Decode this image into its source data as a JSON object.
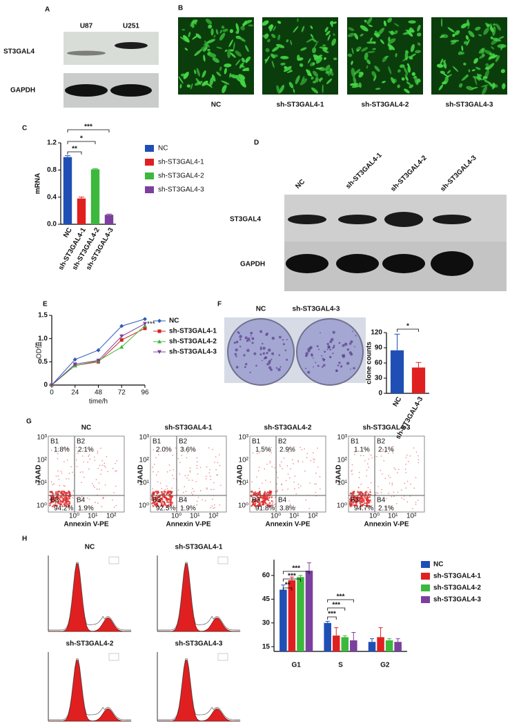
{
  "panels": {
    "A": {
      "label": "A",
      "columns": [
        "U87",
        "U251"
      ],
      "rows": [
        "ST3GAL4",
        "GAPDH"
      ]
    },
    "B": {
      "label": "B",
      "captions": [
        "NC",
        "sh-ST3GAL4-1",
        "sh-ST3GAL4-2",
        "sh-ST3GAL4-3"
      ]
    },
    "C": {
      "label": "C"
    },
    "D": {
      "label": "D",
      "columns": [
        "NC",
        "sh-ST3GAL4-1",
        "sh-ST3GAL4-2",
        "sh-ST3GAL4-3"
      ],
      "rows": [
        "ST3GAL4",
        "GAPDH"
      ]
    },
    "E": {
      "label": "E"
    },
    "F": {
      "label": "F",
      "image_labels": [
        "NC",
        "sh-ST3GAL4-3"
      ]
    },
    "G": {
      "label": "G",
      "y_axis_label": "7AAD",
      "x_axis_label": "Annexin V-PE",
      "y_ticks": [
        "10³",
        "10²",
        "10¹",
        "10⁰"
      ],
      "x_ticks": [
        "10⁰",
        "10¹",
        "10²"
      ],
      "plots": [
        {
          "title": "NC",
          "quadrants": [
            {
              "name": "B1",
              "value": "1.8%"
            },
            {
              "name": "B2",
              "value": "2.1%"
            },
            {
              "name": "B3",
              "value": "94.2%"
            },
            {
              "name": "B4",
              "value": "1.9%"
            }
          ]
        },
        {
          "title": "sh-ST3GAL4-1",
          "quadrants": [
            {
              "name": "B1",
              "value": "2.0%"
            },
            {
              "name": "B2",
              "value": "3.6%"
            },
            {
              "name": "B3",
              "value": "92.5%"
            },
            {
              "name": "B4",
              "value": "1.9%"
            }
          ]
        },
        {
          "title": "sh-ST3GAL4-2",
          "quadrants": [
            {
              "name": "B1",
              "value": "1.5%"
            },
            {
              "name": "B2",
              "value": "2.9%"
            },
            {
              "name": "B3",
              "value": "91.8%"
            },
            {
              "name": "B4",
              "value": "3.8%"
            }
          ]
        },
        {
          "title": "sh-ST3GAL4-3",
          "quadrants": [
            {
              "name": "B1",
              "value": "1.1%"
            },
            {
              "name": "B2",
              "value": "2.1%"
            },
            {
              "name": "B3",
              "value": "94.7%"
            },
            {
              "name": "B4",
              "value": "2.1%"
            }
          ]
        }
      ]
    },
    "H": {
      "label": "H",
      "histogram_titles": [
        "NC",
        "sh-ST3GAL4-1",
        "sh-ST3GAL4-2",
        "sh-ST3GAL4-3"
      ]
    }
  },
  "chart_data": [
    {
      "type": "bar",
      "y_label": "mRNA",
      "categories": [
        "NC",
        "sh-ST3GAL4-1",
        "sh-ST3GAL4-2",
        "sh-ST3GAL4-3"
      ],
      "values": [
        0.99,
        0.38,
        0.81,
        0.14
      ],
      "errors": [
        0.02,
        0.02,
        0.01,
        0.01
      ],
      "colors": [
        "#1f4fb4",
        "#e02020",
        "#3cb83c",
        "#7b3f9e"
      ],
      "ylim": [
        0,
        1.2
      ],
      "yticks": [
        {
          "value": 0,
          "label": "0.0"
        },
        0.4,
        0.8,
        1.2
      ],
      "annotations": [
        "***",
        "*",
        "**"
      ],
      "legend": "right"
    },
    {
      "type": "line",
      "x_label": "time/h",
      "y_label": "OD值",
      "x": [
        0,
        24,
        48,
        72,
        96
      ],
      "series": [
        {
          "name": "NC",
          "color": "#2e5cb8",
          "values": [
            0,
            0.55,
            0.75,
            1.27,
            1.42
          ]
        },
        {
          "name": "sh-ST3GAL4-1",
          "color": "#d42020",
          "values": [
            0,
            0.42,
            0.5,
            0.97,
            1.22
          ]
        },
        {
          "name": "sh-ST3GAL4-2",
          "color": "#3cb83c",
          "values": [
            0,
            0.42,
            0.52,
            0.82,
            1.28
          ]
        },
        {
          "name": "sh-ST3GAL4-3",
          "color": "#7b3f9e",
          "values": [
            0,
            0.45,
            0.53,
            1.05,
            1.32
          ]
        }
      ],
      "xlim": [
        0,
        96
      ],
      "xticks": [
        0,
        24,
        48,
        72,
        96
      ],
      "ylim": [
        0,
        1.5
      ],
      "yticks": [
        0,
        0.5,
        {
          "value": 1,
          "label": "1.0"
        },
        1.5
      ],
      "annotations": [
        "***"
      ],
      "legend": "right"
    },
    {
      "type": "bar",
      "y_label": "clone counts",
      "categories": [
        "NC",
        "sh-ST3GAL4-3"
      ],
      "values": [
        85,
        51
      ],
      "errors": [
        32,
        10
      ],
      "colors": [
        "#1f4fb4",
        "#e02020"
      ],
      "ylim": [
        0,
        120
      ],
      "yticks": [
        0,
        30,
        60,
        90,
        120
      ],
      "annotations": [
        "*"
      ]
    },
    {
      "type": "bar",
      "categories": [
        "G1",
        "S",
        "G2"
      ],
      "series": [
        {
          "name": "NC",
          "color": "#1f4fb4",
          "values": [
            51,
            30,
            18
          ],
          "errors": [
            3,
            1,
            2
          ]
        },
        {
          "name": "sh-ST3GAL4-1",
          "color": "#e02020",
          "values": [
            57,
            22,
            21
          ],
          "errors": [
            2,
            5,
            6
          ]
        },
        {
          "name": "sh-ST3GAL4-2",
          "color": "#3cb83c",
          "values": [
            59,
            21,
            19
          ],
          "errors": [
            1,
            1,
            1
          ]
        },
        {
          "name": "sh-ST3GAL4-3",
          "color": "#7b3f9e",
          "values": [
            63,
            19,
            18
          ],
          "errors": [
            5,
            5,
            2
          ]
        }
      ],
      "ylim": [
        12,
        70
      ],
      "yticks": [
        15,
        30,
        45,
        60
      ],
      "annotations": [
        "***",
        "***",
        "**",
        "***",
        "***",
        "***"
      ],
      "legend": "right"
    }
  ]
}
